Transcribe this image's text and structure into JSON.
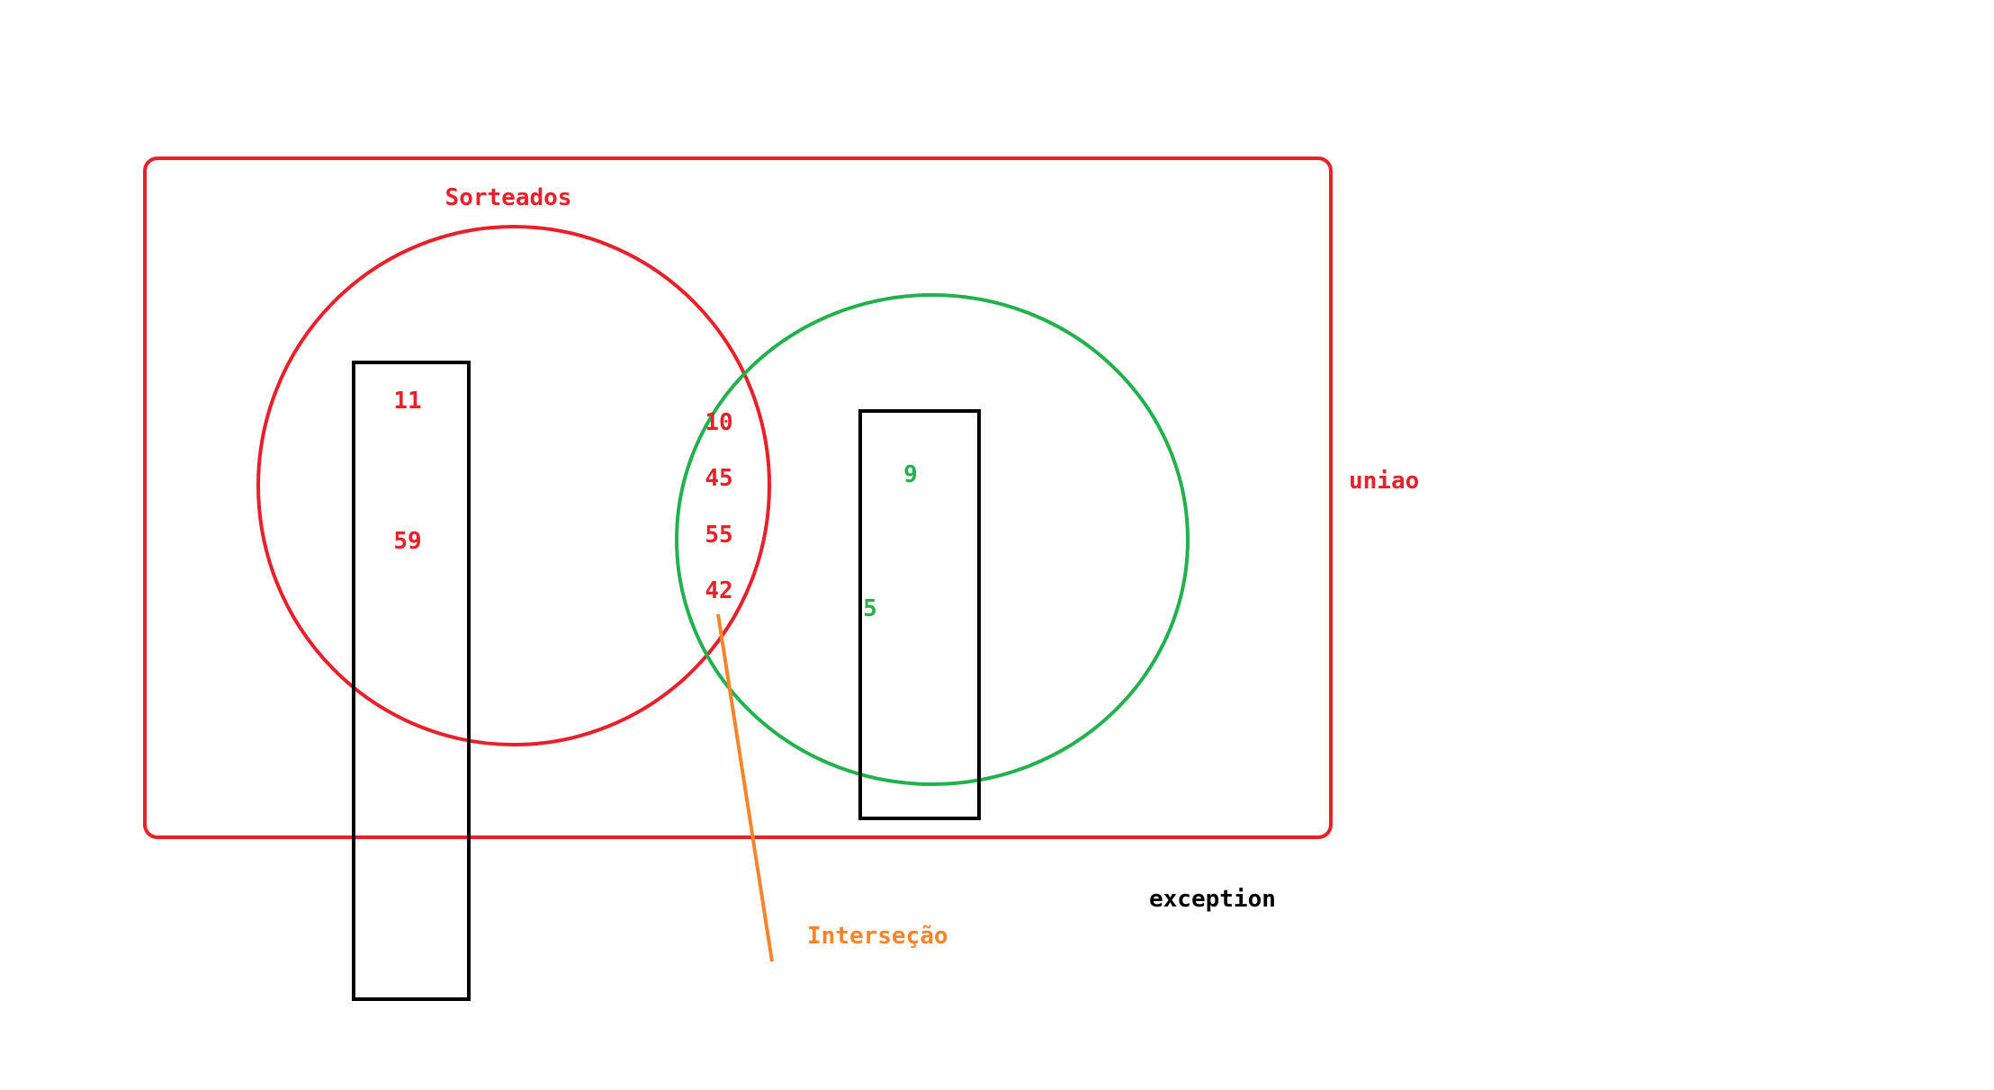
{
  "colors": {
    "red": "#e8202a",
    "green": "#22b14c",
    "black": "#000000",
    "orange": "#f7832a"
  },
  "labels": {
    "sorteados": "Sorteados",
    "uniao": "uniao",
    "intersecao": "Interseção",
    "exception": "exception"
  },
  "sorteados_only": [
    "11",
    "59"
  ],
  "intersection": [
    "10",
    "45",
    "55",
    "42"
  ],
  "green_only": [
    "9",
    "5"
  ]
}
